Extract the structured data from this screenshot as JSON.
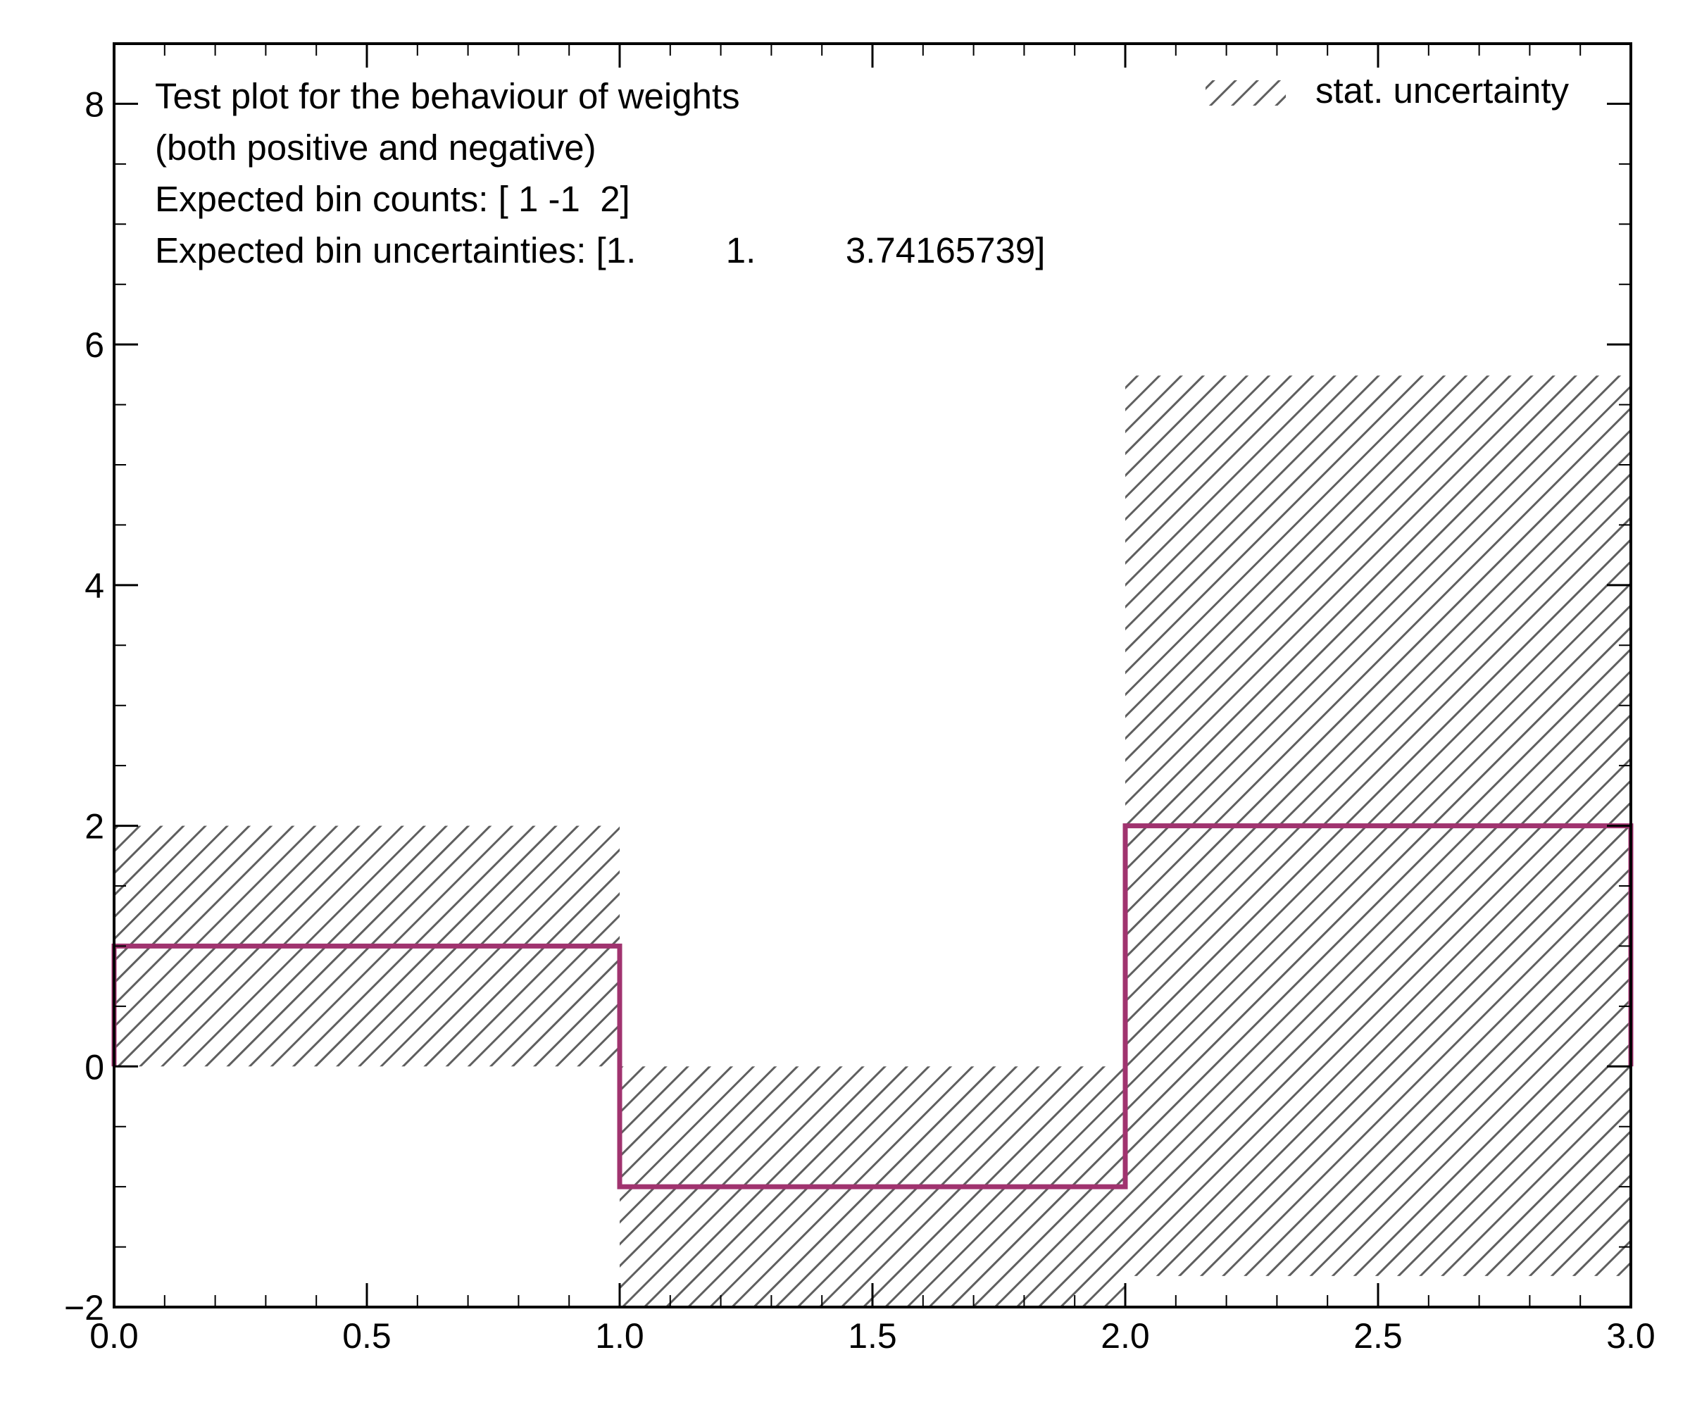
{
  "chart_data": {
    "type": "histogram",
    "bin_edges": [
      0.0,
      1.0,
      2.0,
      3.0
    ],
    "values": [
      1,
      -1,
      2
    ],
    "uncertainties": [
      1.0,
      1.0,
      3.74165739
    ],
    "xlim": [
      0.0,
      3.0
    ],
    "ylim": [
      -2,
      8.5
    ],
    "x_ticks": [
      0.0,
      0.5,
      1.0,
      1.5,
      2.0,
      2.5,
      3.0
    ],
    "x_tick_labels": [
      "0.0",
      "0.5",
      "1.0",
      "1.5",
      "2.0",
      "2.5",
      "3.0"
    ],
    "y_ticks": [
      -2,
      0,
      2,
      4,
      6,
      8
    ],
    "y_tick_labels": [
      "−2",
      "0",
      "2",
      "4",
      "6",
      "8"
    ],
    "x_minor_step": 0.1,
    "y_minor_step": 0.5,
    "annotation": [
      "Test plot for the behaviour of weights",
      "(both positive and negative)",
      "Expected bin counts: [ 1 -1  2]",
      "Expected bin uncertainties: [1.         1.         3.74165739]"
    ],
    "legend": [
      {
        "label": "stat. uncertainty",
        "style": "hatch",
        "color": "#5f5f5f"
      }
    ],
    "legend_position": "top-right",
    "colors": {
      "step_line": "#a0336f",
      "hatch": "#5f5f5f",
      "axes": "#000000"
    },
    "grid": false
  }
}
